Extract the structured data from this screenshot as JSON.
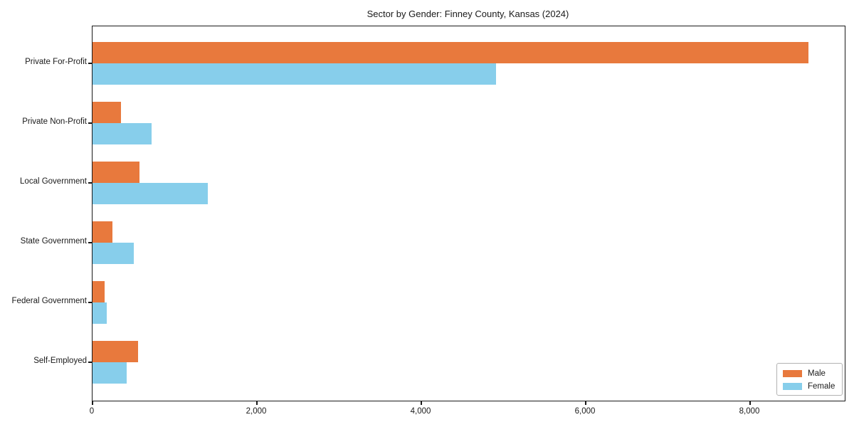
{
  "chart_data": {
    "type": "bar",
    "orientation": "horizontal",
    "title": "Sector by Gender: Finney County, Kansas (2024)",
    "categories": [
      "Private For-Profit",
      "Private Non-Profit",
      "Local Government",
      "State Government",
      "Federal Government",
      "Self-Employed"
    ],
    "series": [
      {
        "name": "Male",
        "color": "#e8793d",
        "values": [
          8710,
          350,
          575,
          240,
          150,
          555
        ]
      },
      {
        "name": "Female",
        "color": "#87ceeb",
        "values": [
          4910,
          720,
          1400,
          505,
          175,
          415
        ]
      }
    ],
    "xlabel": "",
    "ylabel": "",
    "xlim": [
      0,
      9150
    ],
    "xticks": [
      0,
      2000,
      4000,
      6000,
      8000
    ],
    "xtick_labels": [
      "0",
      "2,000",
      "4,000",
      "6,000",
      "8,000"
    ],
    "grid": false,
    "legend": {
      "position": "lower right"
    }
  },
  "colors": {
    "axis": "#1a1a1a",
    "background": "#ffffff",
    "legend_border": "#b3b3b3",
    "male": "#e8793d",
    "female": "#87ceeb"
  }
}
